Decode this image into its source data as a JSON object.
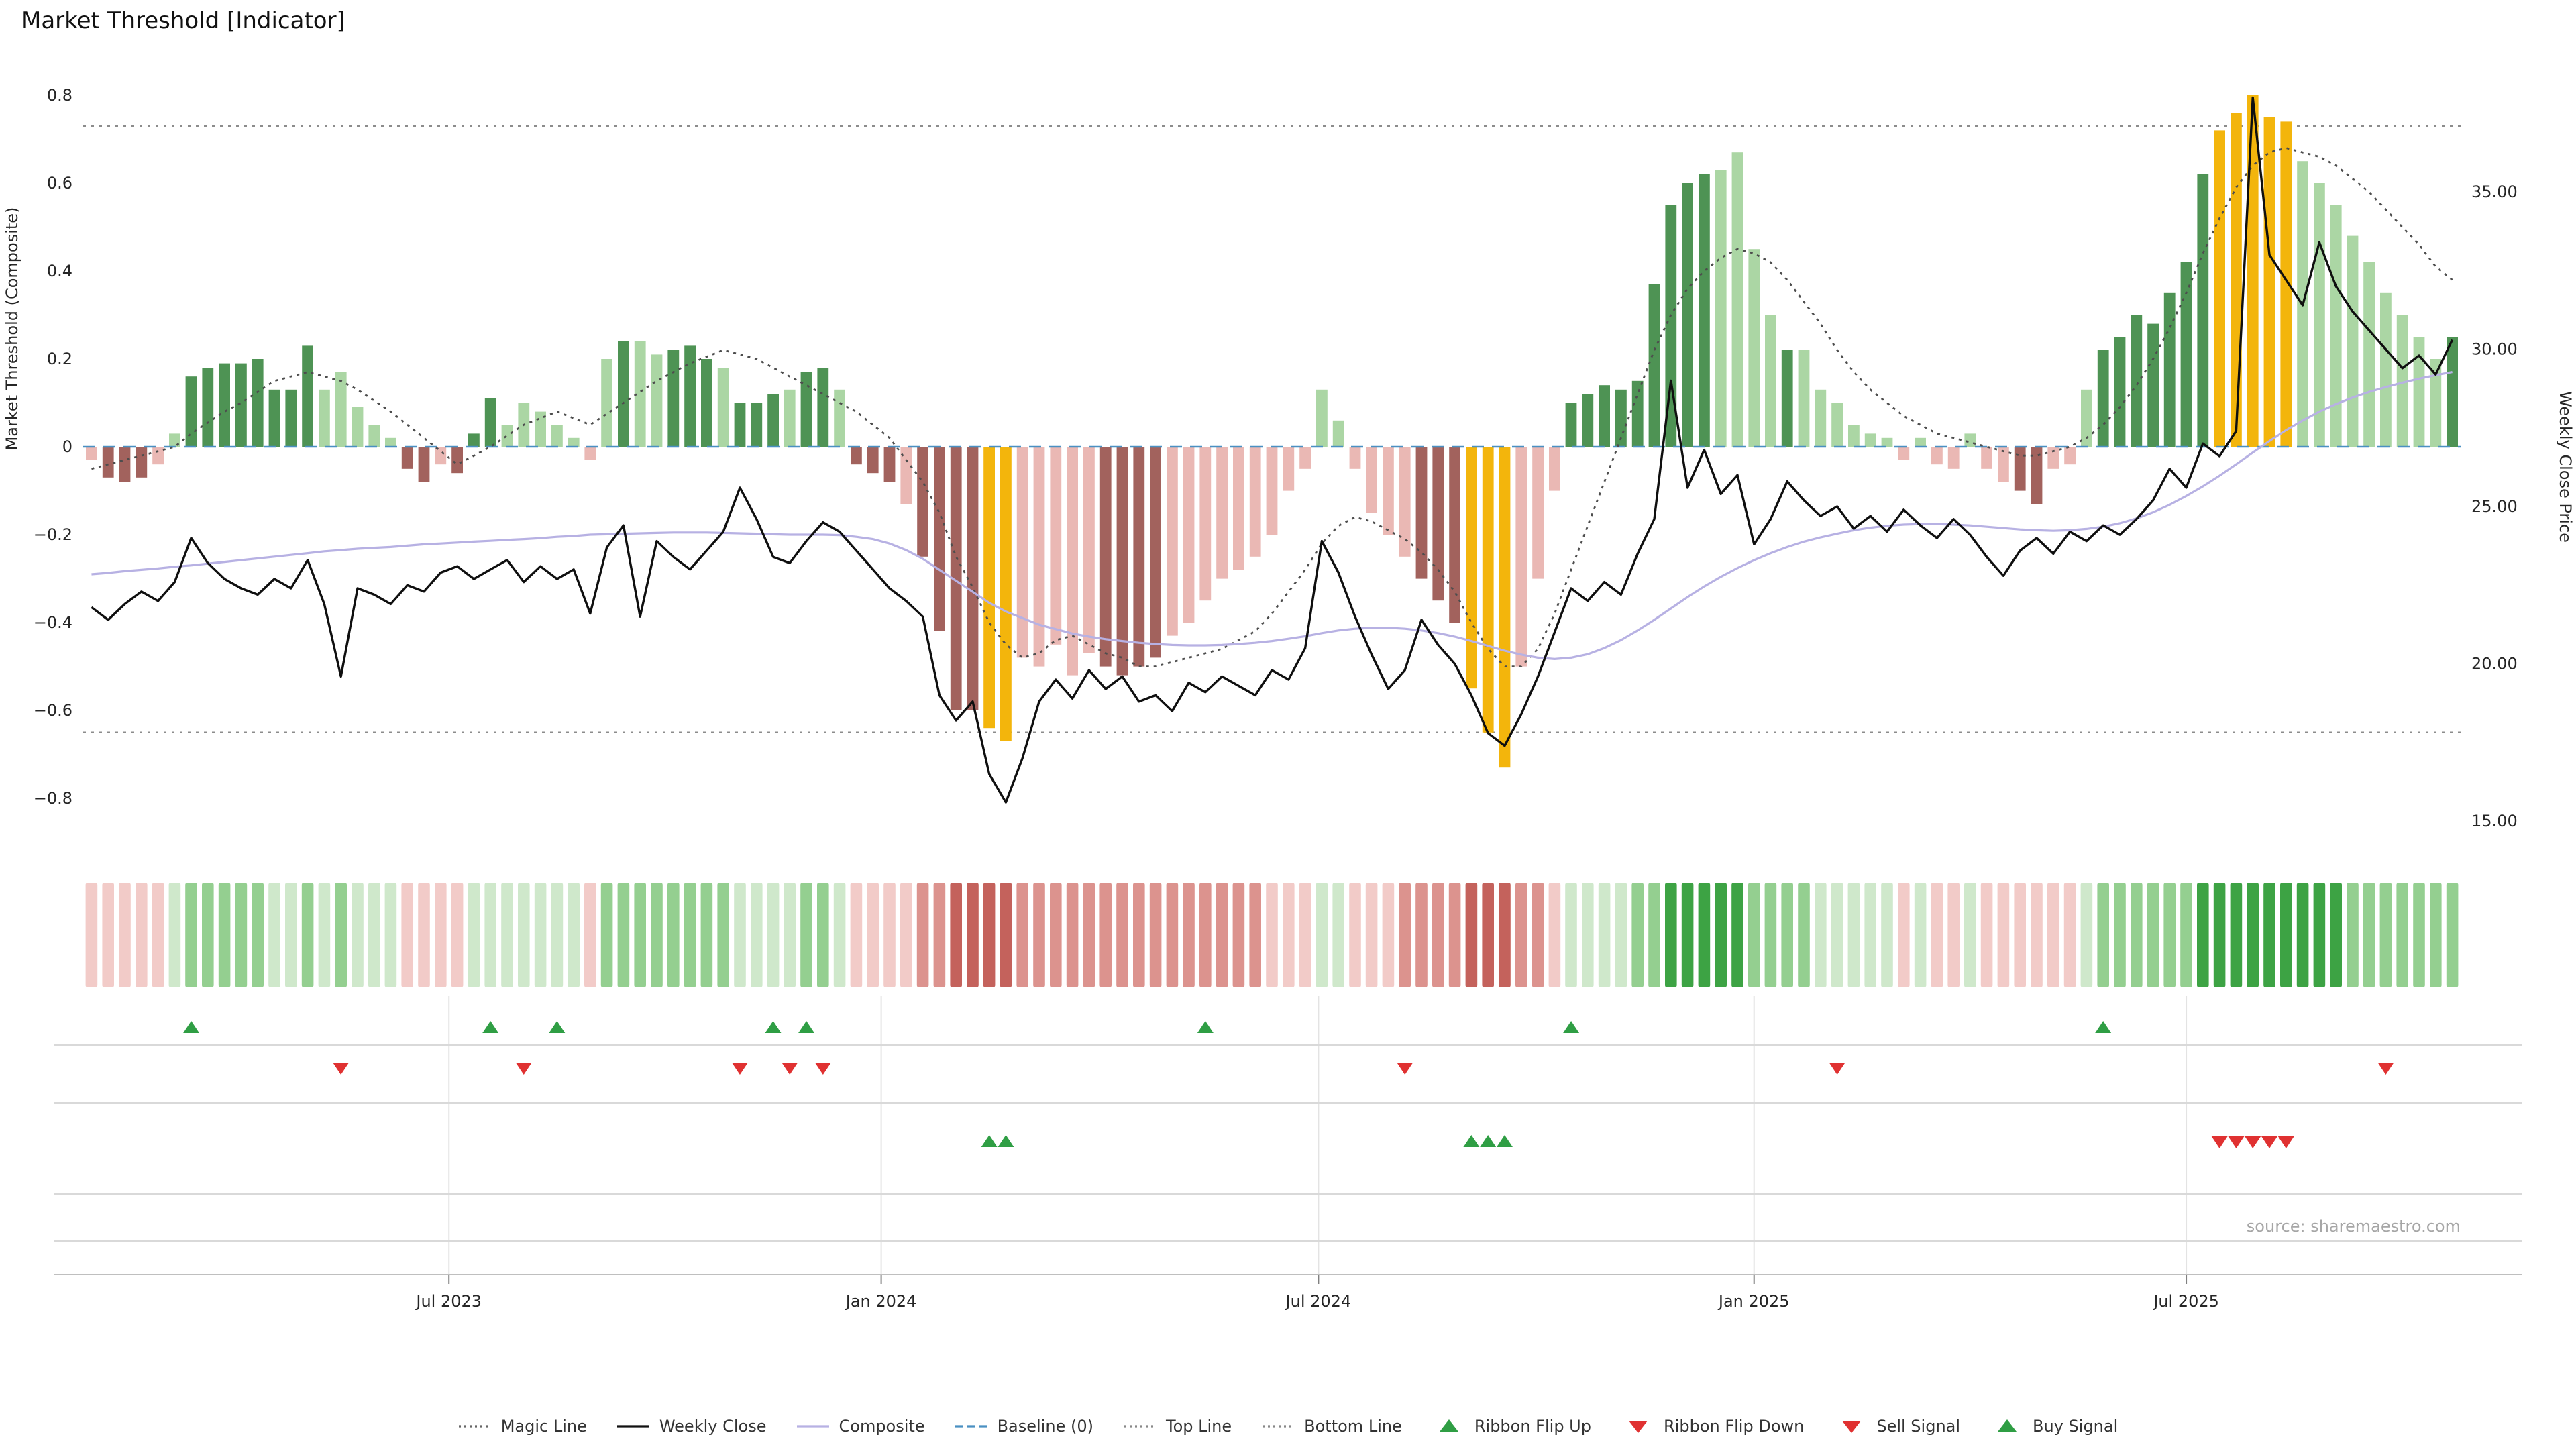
{
  "page": {
    "title": "Market Threshold [Indicator]",
    "source": "source: sharemaestro.com"
  },
  "palette": {
    "bar": {
      "dg": "#4e9354",
      "lg": "#abd6a4",
      "pk": "#eab8b4",
      "dr": "#a2625d",
      "au": "#f3b50c"
    },
    "ribbon": {
      "r1": "#f2cbc8",
      "r2": "#dc938e",
      "r3": "#c4625c",
      "g1": "#cfe8cb",
      "g2": "#94cf90",
      "g3": "#3da344"
    },
    "magic_line": "#4d4d4d",
    "weekly_close": "#0f0f0f",
    "composite": "#b7b1e3",
    "baseline": "#4a90c2",
    "band_lines": "#8c8c8c",
    "flip_up": "#2f9e44",
    "flip_down": "#e03131",
    "buy": "#2f9e44",
    "sell": "#e03131"
  },
  "legend": [
    {
      "label": "Magic Line",
      "marker": "dotted",
      "color": "#666666"
    },
    {
      "label": "Weekly Close",
      "marker": "solid",
      "color": "#111111"
    },
    {
      "label": "Composite",
      "marker": "solid",
      "color": "#b7b1e3"
    },
    {
      "label": "Baseline (0)",
      "marker": "dashed",
      "color": "#4a90c2"
    },
    {
      "label": "Top Line",
      "marker": "dotted",
      "color": "#888888"
    },
    {
      "label": "Bottom Line",
      "marker": "dotted",
      "color": "#888888"
    },
    {
      "label": "Ribbon Flip Up",
      "marker": "tri-up",
      "color": "#2f9e44"
    },
    {
      "label": "Ribbon Flip Down",
      "marker": "tri-down",
      "color": "#e03131"
    },
    {
      "label": "Sell Signal",
      "marker": "tri-down",
      "color": "#e03131"
    },
    {
      "label": "Buy Signal",
      "marker": "tri-up",
      "color": "#2f9e44"
    }
  ],
  "chart_data": {
    "type": "bar",
    "title": "Market Threshold [Indicator]",
    "y1_label": "Market Threshold (Composite)",
    "y2_label": "Weekly Close Price",
    "y1_ticks": [
      {
        "label": "0.8",
        "value": 0.8
      },
      {
        "label": "0.6",
        "value": 0.6
      },
      {
        "label": "0.4",
        "value": 0.4
      },
      {
        "label": "0.2",
        "value": 0.2
      },
      {
        "label": "0",
        "value": 0
      },
      {
        "label": "−0.2",
        "value": -0.2
      },
      {
        "label": "−0.4",
        "value": -0.4
      },
      {
        "label": "−0.6",
        "value": -0.6
      },
      {
        "label": "−0.8",
        "value": -0.8
      }
    ],
    "y2_ticks": [
      {
        "label": "35.00",
        "price": 35
      },
      {
        "label": "30.00",
        "price": 30
      },
      {
        "label": "25.00",
        "price": 25
      },
      {
        "label": "20.00",
        "price": 20
      },
      {
        "label": "15.00",
        "price": 15
      }
    ],
    "x_ticks": [
      {
        "label": "Jul 2023",
        "week": 21.5
      },
      {
        "label": "Jan 2024",
        "week": 47.5
      },
      {
        "label": "Jul 2024",
        "week": 73.8
      },
      {
        "label": "Jan 2025",
        "week": 100
      },
      {
        "label": "Jul 2025",
        "week": 126
      }
    ],
    "top_line": 0.73,
    "bottom_line": -0.65,
    "baseline": 0,
    "weeks": 143,
    "bars": {
      "values": [
        -0.03,
        -0.07,
        -0.08,
        -0.07,
        -0.04,
        0.03,
        0.16,
        0.18,
        0.19,
        0.19,
        0.2,
        0.13,
        0.13,
        0.23,
        0.13,
        0.17,
        0.09,
        0.05,
        0.02,
        -0.05,
        -0.08,
        -0.04,
        -0.06,
        0.03,
        0.11,
        0.05,
        0.1,
        0.08,
        0.05,
        0.02,
        -0.03,
        0.2,
        0.24,
        0.24,
        0.21,
        0.22,
        0.23,
        0.2,
        0.18,
        0.1,
        0.1,
        0.12,
        0.13,
        0.17,
        0.18,
        0.13,
        -0.04,
        -0.06,
        -0.08,
        -0.13,
        -0.25,
        -0.42,
        -0.6,
        -0.6,
        -0.64,
        -0.67,
        -0.48,
        -0.5,
        -0.45,
        -0.52,
        -0.47,
        -0.5,
        -0.52,
        -0.5,
        -0.48,
        -0.43,
        -0.4,
        -0.35,
        -0.3,
        -0.28,
        -0.25,
        -0.2,
        -0.1,
        -0.05,
        0.13,
        0.06,
        -0.05,
        -0.15,
        -0.2,
        -0.25,
        -0.3,
        -0.35,
        -0.4,
        -0.55,
        -0.65,
        -0.73,
        -0.5,
        -0.3,
        -0.1,
        0.1,
        0.12,
        0.14,
        0.13,
        0.15,
        0.37,
        0.55,
        0.6,
        0.62,
        0.63,
        0.67,
        0.45,
        0.3,
        0.22,
        0.22,
        0.13,
        0.1,
        0.05,
        0.03,
        0.02,
        -0.03,
        0.02,
        -0.04,
        -0.05,
        0.03,
        -0.05,
        -0.08,
        -0.1,
        -0.13,
        -0.05,
        -0.04,
        0.13,
        0.22,
        0.25,
        0.3,
        0.28,
        0.35,
        0.42,
        0.62,
        0.72,
        0.76,
        0.8,
        0.75,
        0.74,
        0.65,
        0.6,
        0.55,
        0.48,
        0.42,
        0.35,
        0.3,
        0.25,
        0.2,
        0.25
      ],
      "colors": [
        "pk",
        "dr",
        "dr",
        "dr",
        "pk",
        "lg",
        "dg",
        "dg",
        "dg",
        "dg",
        "dg",
        "dg",
        "dg",
        "dg",
        "lg",
        "lg",
        "lg",
        "lg",
        "lg",
        "dr",
        "dr",
        "pk",
        "dr",
        "dg",
        "dg",
        "lg",
        "lg",
        "lg",
        "lg",
        "lg",
        "pk",
        "lg",
        "dg",
        "lg",
        "lg",
        "dg",
        "dg",
        "dg",
        "lg",
        "dg",
        "dg",
        "dg",
        "lg",
        "dg",
        "dg",
        "lg",
        "dr",
        "dr",
        "dr",
        "pk",
        "dr",
        "dr",
        "dr",
        "dr",
        "au",
        "au",
        "pk",
        "pk",
        "pk",
        "pk",
        "pk",
        "dr",
        "dr",
        "dr",
        "dr",
        "pk",
        "pk",
        "pk",
        "pk",
        "pk",
        "pk",
        "pk",
        "pk",
        "pk",
        "lg",
        "lg",
        "pk",
        "pk",
        "pk",
        "pk",
        "dr",
        "dr",
        "dr",
        "au",
        "au",
        "au",
        "pk",
        "pk",
        "pk",
        "dg",
        "dg",
        "dg",
        "dg",
        "dg",
        "dg",
        "dg",
        "dg",
        "dg",
        "lg",
        "lg",
        "lg",
        "lg",
        "dg",
        "lg",
        "lg",
        "lg",
        "lg",
        "lg",
        "lg",
        "pk",
        "lg",
        "pk",
        "pk",
        "lg",
        "pk",
        "pk",
        "dr",
        "dr",
        "pk",
        "pk",
        "lg",
        "dg",
        "dg",
        "dg",
        "dg",
        "dg",
        "dg",
        "dg",
        "au",
        "au",
        "au",
        "au",
        "au",
        "lg",
        "lg",
        "lg",
        "lg",
        "lg",
        "lg",
        "lg",
        "lg",
        "lg",
        "dg"
      ]
    },
    "weekly_close": [
      21.8,
      21.4,
      21.9,
      22.3,
      22.0,
      22.6,
      24.0,
      23.2,
      22.7,
      22.4,
      22.2,
      22.7,
      22.4,
      23.3,
      21.9,
      19.6,
      22.4,
      22.2,
      21.9,
      22.5,
      22.3,
      22.9,
      23.1,
      22.7,
      23.0,
      23.3,
      22.6,
      23.1,
      22.7,
      23.0,
      21.6,
      23.7,
      24.4,
      21.5,
      23.9,
      23.4,
      23.0,
      23.6,
      24.2,
      25.6,
      24.6,
      23.4,
      23.2,
      23.9,
      24.5,
      24.2,
      23.6,
      23.0,
      22.4,
      22.0,
      21.5,
      19.0,
      18.2,
      18.8,
      16.5,
      15.6,
      17.0,
      18.8,
      19.5,
      18.9,
      19.8,
      19.2,
      19.6,
      18.8,
      19.0,
      18.5,
      19.4,
      19.1,
      19.6,
      19.3,
      19.0,
      19.8,
      19.5,
      20.5,
      23.9,
      22.9,
      21.5,
      20.3,
      19.2,
      19.8,
      21.4,
      20.6,
      20.0,
      19.0,
      17.8,
      17.4,
      18.4,
      19.6,
      21.0,
      22.4,
      22.0,
      22.6,
      22.2,
      23.5,
      24.6,
      29.0,
      25.6,
      26.8,
      25.4,
      26.0,
      23.8,
      24.6,
      25.8,
      25.2,
      24.7,
      25.0,
      24.3,
      24.7,
      24.2,
      24.9,
      24.4,
      24.0,
      24.6,
      24.1,
      23.4,
      22.8,
      23.6,
      24.0,
      23.5,
      24.2,
      23.9,
      24.4,
      24.1,
      24.6,
      25.2,
      26.2,
      25.6,
      27.0,
      26.6,
      27.4,
      38.0,
      33.0,
      32.2,
      31.4,
      33.4,
      32.0,
      31.2,
      30.6,
      30.0,
      29.4,
      29.8,
      29.2,
      30.3
    ],
    "composite": [
      -0.29,
      -0.287,
      -0.283,
      -0.28,
      -0.277,
      -0.273,
      -0.27,
      -0.266,
      -0.262,
      -0.258,
      -0.254,
      -0.25,
      -0.246,
      -0.242,
      -0.238,
      -0.235,
      -0.232,
      -0.23,
      -0.228,
      -0.225,
      -0.222,
      -0.22,
      -0.218,
      -0.216,
      -0.214,
      -0.212,
      -0.21,
      -0.208,
      -0.205,
      -0.203,
      -0.2,
      -0.199,
      -0.198,
      -0.197,
      -0.196,
      -0.195,
      -0.195,
      -0.195,
      -0.196,
      -0.197,
      -0.198,
      -0.199,
      -0.2,
      -0.2,
      -0.2,
      -0.201,
      -0.205,
      -0.21,
      -0.22,
      -0.235,
      -0.255,
      -0.28,
      -0.305,
      -0.33,
      -0.355,
      -0.375,
      -0.39,
      -0.405,
      -0.415,
      -0.425,
      -0.432,
      -0.438,
      -0.442,
      -0.446,
      -0.449,
      -0.451,
      -0.452,
      -0.452,
      -0.451,
      -0.449,
      -0.446,
      -0.442,
      -0.437,
      -0.431,
      -0.424,
      -0.418,
      -0.414,
      -0.412,
      -0.412,
      -0.414,
      -0.418,
      -0.424,
      -0.432,
      -0.442,
      -0.453,
      -0.464,
      -0.473,
      -0.48,
      -0.483,
      -0.48,
      -0.472,
      -0.458,
      -0.44,
      -0.418,
      -0.394,
      -0.368,
      -0.342,
      -0.318,
      -0.296,
      -0.276,
      -0.258,
      -0.242,
      -0.228,
      -0.216,
      -0.206,
      -0.198,
      -0.19,
      -0.184,
      -0.18,
      -0.177,
      -0.176,
      -0.176,
      -0.177,
      -0.179,
      -0.182,
      -0.185,
      -0.188,
      -0.19,
      -0.191,
      -0.19,
      -0.187,
      -0.182,
      -0.174,
      -0.163,
      -0.149,
      -0.132,
      -0.112,
      -0.09,
      -0.066,
      -0.04,
      -0.013,
      0.013,
      0.038,
      0.06,
      0.08,
      0.097,
      0.112,
      0.125,
      0.136,
      0.146,
      0.155,
      0.163,
      0.17
    ],
    "magic_line": [
      -0.05,
      -0.04,
      -0.03,
      -0.02,
      -0.01,
      0.0,
      0.03,
      0.055,
      0.08,
      0.1,
      0.125,
      0.15,
      0.16,
      0.17,
      0.16,
      0.15,
      0.13,
      0.105,
      0.08,
      0.05,
      0.02,
      -0.01,
      -0.04,
      -0.02,
      0.0,
      0.025,
      0.05,
      0.065,
      0.08,
      0.065,
      0.05,
      0.075,
      0.1,
      0.125,
      0.15,
      0.17,
      0.19,
      0.205,
      0.22,
      0.21,
      0.2,
      0.18,
      0.16,
      0.14,
      0.12,
      0.1,
      0.08,
      0.05,
      0.02,
      -0.03,
      -0.08,
      -0.15,
      -0.25,
      -0.32,
      -0.4,
      -0.45,
      -0.48,
      -0.47,
      -0.44,
      -0.43,
      -0.45,
      -0.47,
      -0.48,
      -0.5,
      -0.5,
      -0.49,
      -0.48,
      -0.47,
      -0.46,
      -0.44,
      -0.42,
      -0.38,
      -0.33,
      -0.28,
      -0.22,
      -0.18,
      -0.16,
      -0.17,
      -0.19,
      -0.21,
      -0.24,
      -0.28,
      -0.33,
      -0.4,
      -0.46,
      -0.5,
      -0.5,
      -0.46,
      -0.38,
      -0.28,
      -0.18,
      -0.08,
      0.02,
      0.12,
      0.22,
      0.3,
      0.36,
      0.4,
      0.43,
      0.45,
      0.44,
      0.42,
      0.38,
      0.33,
      0.28,
      0.22,
      0.17,
      0.13,
      0.1,
      0.07,
      0.05,
      0.03,
      0.02,
      0.01,
      0.0,
      -0.01,
      -0.02,
      -0.02,
      -0.01,
      0.0,
      0.02,
      0.05,
      0.09,
      0.14,
      0.2,
      0.27,
      0.35,
      0.44,
      0.52,
      0.59,
      0.64,
      0.67,
      0.68,
      0.67,
      0.66,
      0.64,
      0.61,
      0.58,
      0.54,
      0.5,
      0.46,
      0.41,
      0.38
    ],
    "signals": {
      "ribbon_flip_up": [
        6,
        24,
        28,
        41,
        43,
        67,
        89,
        121
      ],
      "ribbon_flip_down": [
        15,
        26,
        39,
        42,
        44,
        79,
        105,
        138
      ],
      "buy": [
        54,
        55,
        83,
        84,
        85
      ],
      "sell": [
        128,
        129,
        130,
        131,
        132
      ]
    }
  }
}
